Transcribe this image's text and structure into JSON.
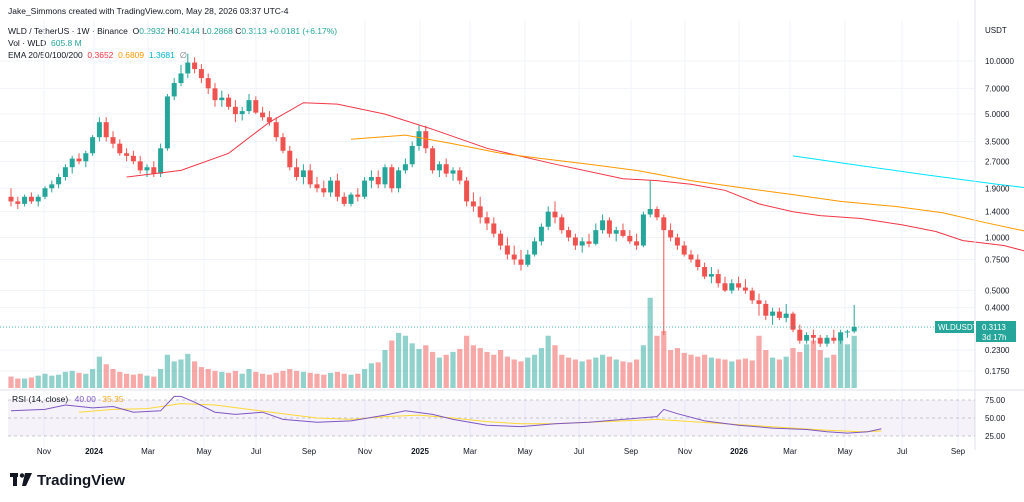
{
  "credit": "Jake_Simmons created with TradingView.com, May 28, 2026 03:37 UTC-4",
  "legend": {
    "symbol": "WLD / TetherUS · 1W · Binance",
    "open_label": "O",
    "open": "0.2932",
    "high_label": "H",
    "high": "0.4144",
    "low_label": "L",
    "low": "0.2868",
    "close_label": "C",
    "close": "0.3113",
    "change": "+0.0181 (+6.17%)",
    "vol_label": "Vol · WLD",
    "vol_value": "605.8 M",
    "ema_label": "EMA 20/50/100/200",
    "ema20": "0.3652",
    "ema50": "0.6809",
    "ema100": "1.3681",
    "ema200": "∅"
  },
  "rsi_label": {
    "name": "RSI (14, close)",
    "v1": "40.00",
    "v2": "35.35"
  },
  "price_tag": {
    "symbol": "WLDUSDT",
    "price": "0.3113",
    "countdown": "3d 17h"
  },
  "brand": "TradingView",
  "colors": {
    "up": "#26a69a",
    "down": "#ef5350",
    "ema20": "#f23645",
    "ema50": "#ff9800",
    "ema100": "#00e5ff",
    "rsi": "#7e57c2",
    "rsi_ma": "#fdd835"
  },
  "chart_data": {
    "type": "candlestick",
    "y_axis_label": "USDT",
    "y_scale": "log",
    "y_ticks": [
      "10.0000",
      "7.0000",
      "5.0000",
      "3.5000",
      "2.7000",
      "1.9000",
      "1.4000",
      "1.0000",
      "0.7500",
      "0.5000",
      "0.4000",
      "0.2300",
      "0.1750"
    ],
    "x_ticks": [
      "Nov",
      "2024",
      "Mar",
      "May",
      "Jul",
      "Sep",
      "Nov",
      "2025",
      "Mar",
      "May",
      "Jul",
      "Sep",
      "Nov",
      "2026",
      "Mar",
      "May",
      "Jul",
      "Sep"
    ],
    "rsi_ticks": [
      "75.00",
      "50.00",
      "25.00"
    ],
    "candles": [
      [
        1.7,
        1.9,
        1.5,
        1.6
      ],
      [
        1.6,
        1.7,
        1.45,
        1.55
      ],
      [
        1.55,
        1.75,
        1.5,
        1.7
      ],
      [
        1.7,
        1.8,
        1.55,
        1.6
      ],
      [
        1.6,
        1.75,
        1.5,
        1.7
      ],
      [
        1.7,
        1.95,
        1.65,
        1.9
      ],
      [
        1.9,
        2.1,
        1.8,
        2.0
      ],
      [
        2.0,
        2.3,
        1.9,
        2.2
      ],
      [
        2.2,
        2.6,
        2.1,
        2.5
      ],
      [
        2.5,
        2.9,
        2.3,
        2.8
      ],
      [
        2.8,
        3.0,
        2.6,
        2.7
      ],
      [
        2.7,
        3.1,
        2.5,
        3.0
      ],
      [
        3.0,
        3.8,
        2.9,
        3.7
      ],
      [
        3.7,
        4.8,
        3.5,
        4.5
      ],
      [
        4.5,
        4.8,
        3.5,
        3.7
      ],
      [
        3.7,
        4.0,
        3.2,
        3.4
      ],
      [
        3.4,
        3.6,
        2.9,
        3.0
      ],
      [
        3.0,
        3.2,
        2.7,
        2.9
      ],
      [
        2.9,
        3.1,
        2.6,
        2.7
      ],
      [
        2.7,
        2.9,
        2.3,
        2.4
      ],
      [
        2.4,
        2.6,
        2.2,
        2.5
      ],
      [
        2.5,
        2.7,
        2.2,
        2.3
      ],
      [
        2.3,
        3.4,
        2.2,
        3.2
      ],
      [
        3.2,
        6.5,
        3.1,
        6.3
      ],
      [
        6.3,
        8.0,
        6.0,
        7.5
      ],
      [
        7.5,
        9.5,
        7.2,
        8.5
      ],
      [
        8.5,
        11.0,
        8.0,
        9.8
      ],
      [
        9.8,
        10.5,
        8.5,
        9.0
      ],
      [
        9.0,
        9.6,
        7.5,
        8.0
      ],
      [
        8.0,
        8.5,
        6.5,
        7.0
      ],
      [
        7.0,
        7.5,
        5.5,
        6.0
      ],
      [
        6.0,
        6.8,
        5.5,
        6.2
      ],
      [
        6.2,
        6.5,
        5.3,
        5.5
      ],
      [
        5.5,
        6.0,
        4.5,
        5.0
      ],
      [
        5.0,
        5.5,
        4.6,
        5.2
      ],
      [
        5.2,
        6.5,
        5.0,
        6.0
      ],
      [
        6.0,
        6.3,
        5.0,
        5.1
      ],
      [
        5.1,
        5.5,
        4.6,
        4.8
      ],
      [
        4.8,
        5.2,
        4.3,
        4.5
      ],
      [
        4.5,
        4.8,
        3.5,
        3.7
      ],
      [
        3.7,
        3.9,
        3.0,
        3.1
      ],
      [
        3.1,
        3.3,
        2.4,
        2.5
      ],
      [
        2.5,
        2.8,
        2.1,
        2.2
      ],
      [
        2.2,
        2.6,
        2.0,
        2.4
      ],
      [
        2.4,
        2.6,
        1.9,
        2.0
      ],
      [
        2.0,
        2.2,
        1.8,
        1.9
      ],
      [
        1.9,
        2.1,
        1.7,
        1.8
      ],
      [
        1.8,
        2.2,
        1.7,
        2.1
      ],
      [
        2.1,
        2.3,
        1.6,
        1.7
      ],
      [
        1.7,
        1.8,
        1.5,
        1.55
      ],
      [
        1.55,
        1.8,
        1.5,
        1.75
      ],
      [
        1.75,
        1.9,
        1.6,
        1.7
      ],
      [
        1.7,
        2.2,
        1.65,
        2.1
      ],
      [
        2.1,
        2.4,
        1.9,
        2.2
      ],
      [
        2.2,
        2.4,
        1.9,
        2.0
      ],
      [
        2.0,
        2.6,
        1.9,
        2.5
      ],
      [
        2.5,
        2.6,
        1.8,
        1.9
      ],
      [
        1.9,
        2.5,
        1.8,
        2.4
      ],
      [
        2.4,
        2.8,
        2.3,
        2.6
      ],
      [
        2.6,
        3.5,
        2.5,
        3.3
      ],
      [
        3.3,
        4.3,
        3.1,
        4.0
      ],
      [
        4.0,
        4.3,
        3.0,
        3.2
      ],
      [
        3.2,
        3.3,
        2.3,
        2.4
      ],
      [
        2.4,
        2.7,
        2.2,
        2.6
      ],
      [
        2.6,
        2.8,
        2.2,
        2.3
      ],
      [
        2.3,
        2.5,
        2.1,
        2.4
      ],
      [
        2.4,
        2.5,
        2.0,
        2.1
      ],
      [
        2.1,
        2.2,
        1.5,
        1.6
      ],
      [
        1.6,
        1.8,
        1.4,
        1.5
      ],
      [
        1.5,
        1.7,
        1.2,
        1.3
      ],
      [
        1.3,
        1.4,
        1.1,
        1.2
      ],
      [
        1.2,
        1.3,
        1.0,
        1.05
      ],
      [
        1.05,
        1.1,
        0.85,
        0.9
      ],
      [
        0.9,
        1.0,
        0.75,
        0.8
      ],
      [
        0.8,
        0.9,
        0.7,
        0.75
      ],
      [
        0.75,
        0.85,
        0.65,
        0.7
      ],
      [
        0.7,
        0.85,
        0.68,
        0.8
      ],
      [
        0.8,
        1.0,
        0.78,
        0.95
      ],
      [
        0.95,
        1.2,
        0.9,
        1.15
      ],
      [
        1.15,
        1.5,
        1.1,
        1.4
      ],
      [
        1.4,
        1.6,
        1.2,
        1.3
      ],
      [
        1.3,
        1.35,
        1.05,
        1.1
      ],
      [
        1.1,
        1.15,
        0.95,
        1.0
      ],
      [
        1.0,
        1.05,
        0.85,
        0.9
      ],
      [
        0.9,
        1.0,
        0.82,
        0.95
      ],
      [
        0.95,
        1.05,
        0.88,
        0.92
      ],
      [
        0.92,
        1.2,
        0.9,
        1.1
      ],
      [
        1.1,
        1.35,
        1.05,
        1.25
      ],
      [
        1.25,
        1.3,
        1.0,
        1.05
      ],
      [
        1.05,
        1.15,
        0.95,
        1.1
      ],
      [
        1.1,
        1.2,
        1.0,
        1.02
      ],
      [
        1.02,
        1.1,
        0.92,
        0.95
      ],
      [
        0.95,
        1.05,
        0.85,
        0.9
      ],
      [
        0.9,
        1.4,
        0.88,
        1.35
      ],
      [
        1.35,
        2.1,
        1.3,
        1.45
      ],
      [
        1.45,
        1.5,
        1.25,
        1.3
      ],
      [
        1.3,
        1.35,
        0.28,
        1.1
      ],
      [
        1.1,
        1.2,
        0.95,
        1.0
      ],
      [
        1.0,
        1.05,
        0.85,
        0.9
      ],
      [
        0.9,
        0.95,
        0.78,
        0.8
      ],
      [
        0.8,
        0.85,
        0.72,
        0.75
      ],
      [
        0.75,
        0.8,
        0.65,
        0.68
      ],
      [
        0.68,
        0.72,
        0.58,
        0.6
      ],
      [
        0.6,
        0.68,
        0.55,
        0.62
      ],
      [
        0.62,
        0.66,
        0.52,
        0.55
      ],
      [
        0.55,
        0.6,
        0.49,
        0.5
      ],
      [
        0.5,
        0.58,
        0.48,
        0.55
      ],
      [
        0.55,
        0.6,
        0.5,
        0.52
      ],
      [
        0.52,
        0.58,
        0.48,
        0.5
      ],
      [
        0.5,
        0.52,
        0.42,
        0.44
      ],
      [
        0.44,
        0.48,
        0.36,
        0.42
      ],
      [
        0.42,
        0.44,
        0.34,
        0.36
      ],
      [
        0.36,
        0.4,
        0.32,
        0.38
      ],
      [
        0.38,
        0.4,
        0.34,
        0.35
      ],
      [
        0.35,
        0.42,
        0.33,
        0.37
      ],
      [
        0.37,
        0.38,
        0.29,
        0.3
      ],
      [
        0.3,
        0.32,
        0.25,
        0.26
      ],
      [
        0.26,
        0.29,
        0.25,
        0.28
      ],
      [
        0.28,
        0.3,
        0.25,
        0.27
      ],
      [
        0.27,
        0.28,
        0.24,
        0.25
      ],
      [
        0.25,
        0.28,
        0.24,
        0.27
      ],
      [
        0.27,
        0.3,
        0.25,
        0.26
      ],
      [
        0.26,
        0.3,
        0.25,
        0.29
      ],
      [
        0.29,
        0.3,
        0.27,
        0.2932
      ],
      [
        0.2932,
        0.4144,
        0.2868,
        0.3113
      ]
    ],
    "volume_relative": [
      0.12,
      0.1,
      0.1,
      0.11,
      0.13,
      0.15,
      0.13,
      0.14,
      0.17,
      0.18,
      0.16,
      0.15,
      0.2,
      0.33,
      0.25,
      0.2,
      0.17,
      0.15,
      0.14,
      0.15,
      0.13,
      0.12,
      0.2,
      0.35,
      0.28,
      0.3,
      0.36,
      0.28,
      0.22,
      0.2,
      0.18,
      0.17,
      0.16,
      0.18,
      0.15,
      0.2,
      0.17,
      0.15,
      0.14,
      0.16,
      0.18,
      0.2,
      0.18,
      0.17,
      0.16,
      0.15,
      0.14,
      0.16,
      0.17,
      0.15,
      0.14,
      0.15,
      0.2,
      0.26,
      0.27,
      0.4,
      0.5,
      0.58,
      0.55,
      0.47,
      0.41,
      0.45,
      0.38,
      0.32,
      0.35,
      0.38,
      0.41,
      0.55,
      0.45,
      0.42,
      0.38,
      0.35,
      0.4,
      0.33,
      0.3,
      0.28,
      0.32,
      0.35,
      0.42,
      0.55,
      0.45,
      0.35,
      0.32,
      0.3,
      0.28,
      0.3,
      0.32,
      0.35,
      0.33,
      0.3,
      0.28,
      0.27,
      0.3,
      0.45,
      0.95,
      0.55,
      0.6,
      0.4,
      0.42,
      0.37,
      0.35,
      0.33,
      0.35,
      0.32,
      0.31,
      0.3,
      0.28,
      0.3,
      0.31,
      0.29,
      0.55,
      0.4,
      0.32,
      0.3,
      0.33,
      0.42,
      0.38,
      0.46,
      0.5,
      0.4,
      0.32,
      0.35,
      0.52,
      0.46,
      0.55
    ],
    "ema20": [
      [
        17,
        2.2
      ],
      [
        25,
        2.4
      ],
      [
        32,
        3.0
      ],
      [
        38,
        4.5
      ],
      [
        43,
        5.8
      ],
      [
        48,
        5.7
      ],
      [
        55,
        5.0
      ],
      [
        62,
        4.1
      ],
      [
        70,
        3.2
      ],
      [
        80,
        2.6
      ],
      [
        90,
        2.15
      ],
      [
        95,
        2.1
      ],
      [
        100,
        2.0
      ],
      [
        105,
        1.85
      ],
      [
        110,
        1.55
      ],
      [
        115,
        1.4
      ],
      [
        119,
        1.33
      ],
      [
        125,
        1.28
      ],
      [
        131,
        1.18
      ],
      [
        136,
        1.08
      ],
      [
        140,
        0.96
      ],
      [
        146,
        0.9
      ],
      [
        150,
        0.82
      ],
      [
        156,
        0.73
      ],
      [
        161,
        0.63
      ],
      [
        166,
        0.56
      ],
      [
        170,
        0.5
      ],
      [
        175,
        0.43
      ],
      [
        179,
        0.395
      ],
      [
        183,
        0.375
      ]
    ],
    "ema50": [
      [
        50,
        3.6
      ],
      [
        58,
        3.8
      ],
      [
        65,
        3.4
      ],
      [
        72,
        3.0
      ],
      [
        78,
        2.8
      ],
      [
        85,
        2.6
      ],
      [
        92,
        2.4
      ],
      [
        100,
        2.1
      ],
      [
        108,
        1.9
      ],
      [
        115,
        1.75
      ],
      [
        122,
        1.6
      ],
      [
        130,
        1.5
      ],
      [
        137,
        1.38
      ],
      [
        143,
        1.22
      ],
      [
        150,
        1.07
      ],
      [
        156,
        0.95
      ],
      [
        162,
        0.84
      ],
      [
        167,
        0.76
      ],
      [
        172,
        0.7
      ]
    ],
    "ema100": [
      [
        115,
        2.9
      ],
      [
        125,
        2.55
      ],
      [
        135,
        2.25
      ],
      [
        145,
        2.0
      ],
      [
        155,
        1.8
      ],
      [
        163,
        1.6
      ],
      [
        172,
        1.38
      ]
    ],
    "rsi": [
      [
        0,
        60
      ],
      [
        5,
        62
      ],
      [
        8,
        68
      ],
      [
        12,
        64
      ],
      [
        15,
        66
      ],
      [
        18,
        58
      ],
      [
        22,
        60
      ],
      [
        24,
        80
      ],
      [
        25,
        80
      ],
      [
        27,
        72
      ],
      [
        30,
        58
      ],
      [
        33,
        55
      ],
      [
        37,
        58
      ],
      [
        40,
        48
      ],
      [
        45,
        44
      ],
      [
        50,
        46
      ],
      [
        55,
        54
      ],
      [
        58,
        60
      ],
      [
        62,
        55
      ],
      [
        65,
        48
      ],
      [
        70,
        40
      ],
      [
        75,
        38
      ],
      [
        80,
        42
      ],
      [
        85,
        44
      ],
      [
        90,
        48
      ],
      [
        95,
        52
      ],
      [
        96,
        62
      ],
      [
        98,
        56
      ],
      [
        102,
        46
      ],
      [
        107,
        40
      ],
      [
        112,
        36
      ],
      [
        117,
        34
      ],
      [
        120,
        31
      ],
      [
        123,
        29
      ],
      [
        126,
        31
      ],
      [
        128,
        35
      ]
    ],
    "rsi_ma": [
      [
        10,
        58
      ],
      [
        15,
        62
      ],
      [
        20,
        63
      ],
      [
        25,
        70
      ],
      [
        30,
        68
      ],
      [
        35,
        62
      ],
      [
        40,
        56
      ],
      [
        45,
        50
      ],
      [
        50,
        48
      ],
      [
        55,
        52
      ],
      [
        60,
        54
      ],
      [
        65,
        50
      ],
      [
        70,
        45
      ],
      [
        75,
        42
      ],
      [
        80,
        42
      ],
      [
        85,
        44
      ],
      [
        90,
        46
      ],
      [
        95,
        48
      ],
      [
        100,
        45
      ],
      [
        105,
        42
      ],
      [
        110,
        39
      ],
      [
        115,
        36
      ],
      [
        120,
        33
      ],
      [
        125,
        31
      ],
      [
        128,
        32
      ]
    ]
  }
}
